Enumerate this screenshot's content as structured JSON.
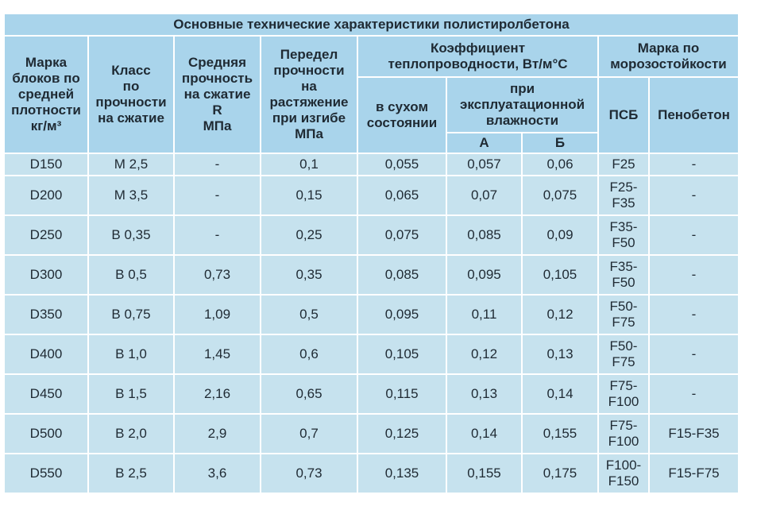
{
  "table": {
    "title": "Основные технические характеристики полистиролбетона",
    "headers": {
      "grade": "Марка\nблоков по\nсредней\nплотности\nкг/м³",
      "class": "Класс\nпо\nпрочности\nна сжатие",
      "avg_strength": "Средняя\nпрочность\nна сжатие\nR\nМПа",
      "tensile": "Передел\nпрочности\nна\nрастяжение\nпри изгибе\nМПа",
      "conductivity": "Коэффициент\nтеплопроводности, Вт/м°С",
      "frost": "Марка по\nморозостойкости",
      "dry": "в сухом\nсостоянии",
      "operational": "при\nэксплуатационной\nвлажности",
      "a": "А",
      "b": "Б",
      "psb": "ПСБ",
      "foam": "Пенобетон"
    },
    "rows": [
      [
        "D150",
        "М 2,5",
        "-",
        "0,1",
        "0,055",
        "0,057",
        "0,06",
        "F25",
        "-"
      ],
      [
        "D200",
        "М 3,5",
        "-",
        "0,15",
        "0,065",
        "0,07",
        "0,075",
        "F25-\nF35",
        "-"
      ],
      [
        "D250",
        "В 0,35",
        "-",
        "0,25",
        "0,075",
        "0,085",
        "0,09",
        "F35-\nF50",
        "-"
      ],
      [
        "D300",
        "В 0,5",
        "0,73",
        "0,35",
        "0,085",
        "0,095",
        "0,105",
        "F35-\nF50",
        "-"
      ],
      [
        "D350",
        "В 0,75",
        "1,09",
        "0,5",
        "0,095",
        "0,11",
        "0,12",
        "F50-\nF75",
        "-"
      ],
      [
        "D400",
        "В 1,0",
        "1,45",
        "0,6",
        "0,105",
        "0,12",
        "0,13",
        "F50-\nF75",
        "-"
      ],
      [
        "D450",
        "В 1,5",
        "2,16",
        "0,65",
        "0,115",
        "0,13",
        "0,14",
        "F75-\nF100",
        "-"
      ],
      [
        "D500",
        "В 2,0",
        "2,9",
        "0,7",
        "0,125",
        "0,14",
        "0,155",
        "F75-\nF100",
        "F15-F35"
      ],
      [
        "D550",
        "В 2,5",
        "3,6",
        "0,73",
        "0,135",
        "0,155",
        "0,175",
        "F100-\nF150",
        "F15-F75"
      ]
    ]
  }
}
